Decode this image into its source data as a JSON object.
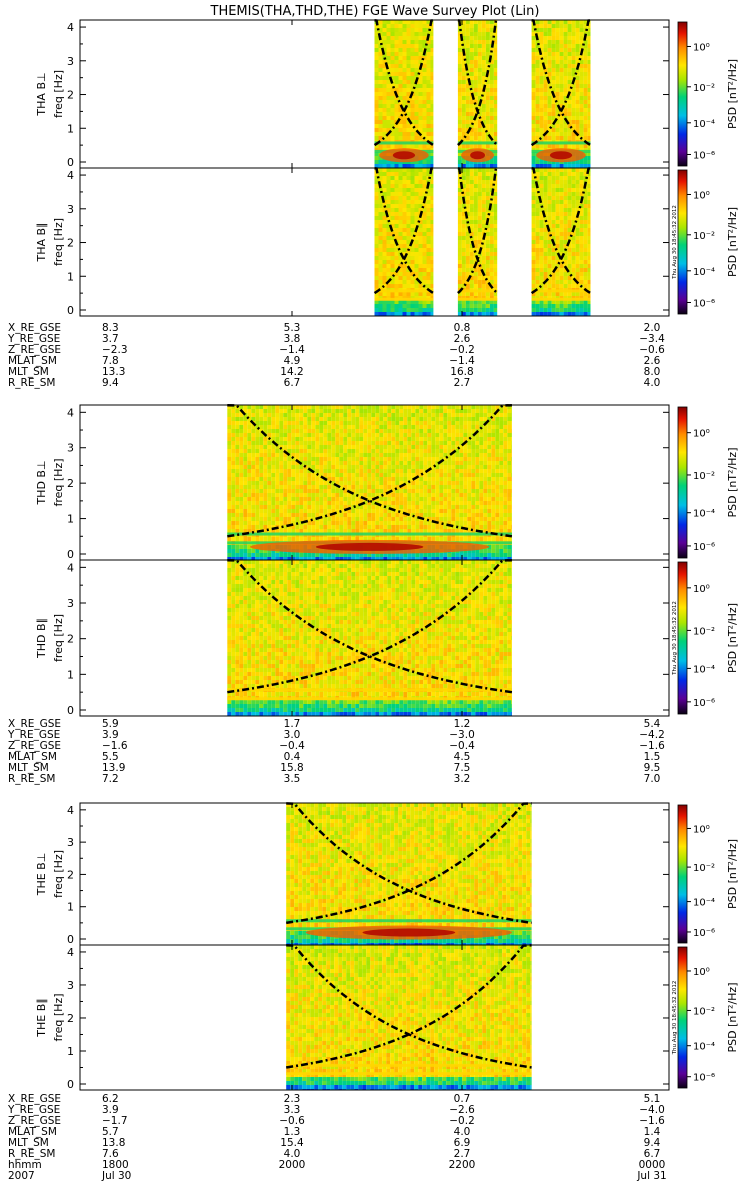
{
  "title": "THEMIS(THA,THD,THE) FGE Wave Survey Plot (Lin)",
  "colorbar": {
    "label": "PSD [nT²/Hz]",
    "ticks": [
      "10⁰",
      "10⁻²",
      "10⁻⁴",
      "10⁻⁶"
    ],
    "stamp": "Thu Aug 30 18:45:32 2012"
  },
  "ephemeris_labels": [
    "X_RE_GSE",
    "Y_RE_GSE",
    "Z_RE_GSE",
    "MLAT_SM",
    "MLT_SM",
    "R_RE_SM"
  ],
  "time_axis": {
    "hhmm_label": "hhmm",
    "year_label": "2007",
    "tick_times": [
      "1800",
      "2000",
      "2200",
      "0000"
    ],
    "tick_dates": [
      "Jul 30",
      "",
      "",
      "Jul 31"
    ]
  },
  "chart_data": [
    {
      "type": "heatmap",
      "probe": "THA",
      "ylabel": "THA B⊥",
      "ylabel2": "freq [Hz]",
      "yticks": [
        "0",
        "1",
        "2",
        "3",
        "4"
      ],
      "ylim": [
        0,
        4
      ],
      "xlim_hours": [
        18,
        24
      ],
      "data_segments_hours": [
        [
          21.0,
          21.6
        ],
        [
          21.85,
          22.25
        ],
        [
          22.6,
          23.2
        ]
      ],
      "colorscale": "log PSD, 1e-6 to 1e1 nT^2/Hz"
    },
    {
      "type": "heatmap",
      "probe": "THA",
      "ylabel": "THA B∥",
      "ylabel2": "freq [Hz]",
      "yticks": [
        "0",
        "1",
        "2",
        "3",
        "4"
      ],
      "ylim": [
        0,
        4
      ],
      "xlim_hours": [
        18,
        24
      ],
      "data_segments_hours": [
        [
          21.0,
          21.6
        ],
        [
          21.85,
          22.25
        ],
        [
          22.6,
          23.2
        ]
      ]
    },
    {
      "type": "heatmap",
      "probe": "THD",
      "ylabel": "THD B⊥",
      "ylabel2": "freq [Hz]",
      "yticks": [
        "0",
        "1",
        "2",
        "3",
        "4"
      ],
      "ylim": [
        0,
        4
      ],
      "xlim_hours": [
        18,
        24
      ],
      "data_segments_hours": [
        [
          19.5,
          22.4
        ]
      ]
    },
    {
      "type": "heatmap",
      "probe": "THD",
      "ylabel": "THD B∥",
      "ylabel2": "freq [Hz]",
      "yticks": [
        "0",
        "1",
        "2",
        "3",
        "4"
      ],
      "ylim": [
        0,
        4
      ],
      "xlim_hours": [
        18,
        24
      ],
      "data_segments_hours": [
        [
          19.5,
          22.4
        ]
      ]
    },
    {
      "type": "heatmap",
      "probe": "THE",
      "ylabel": "THE B⊥",
      "ylabel2": "freq [Hz]",
      "yticks": [
        "0",
        "1",
        "2",
        "3",
        "4"
      ],
      "ylim": [
        0,
        4
      ],
      "xlim_hours": [
        18,
        24
      ],
      "data_segments_hours": [
        [
          20.1,
          22.6
        ]
      ]
    },
    {
      "type": "heatmap",
      "probe": "THE",
      "ylabel": "THE B∥",
      "ylabel2": "freq [Hz]",
      "yticks": [
        "0",
        "1",
        "2",
        "3",
        "4"
      ],
      "ylim": [
        0,
        4
      ],
      "xlim_hours": [
        18,
        24
      ],
      "data_segments_hours": [
        [
          20.1,
          22.6
        ]
      ]
    }
  ],
  "ephemeris": [
    {
      "probe": "THA",
      "columns": [
        [
          "8.3",
          "3.7",
          "−2.3",
          "7.8",
          "13.3",
          "9.4"
        ],
        [
          "5.3",
          "3.8",
          "−1.4",
          "4.9",
          "14.2",
          "6.7"
        ],
        [
          "0.8",
          "2.6",
          "−0.2",
          "−1.4",
          "16.8",
          "2.7"
        ],
        [
          "2.0",
          "−3.4",
          "−0.6",
          "2.6",
          "8.0",
          "4.0"
        ]
      ]
    },
    {
      "probe": "THD",
      "columns": [
        [
          "5.9",
          "3.9",
          "−1.6",
          "5.5",
          "13.9",
          "7.2"
        ],
        [
          "1.7",
          "3.0",
          "−0.4",
          "0.4",
          "15.8",
          "3.5"
        ],
        [
          "1.2",
          "−3.0",
          "−0.4",
          "4.5",
          "7.5",
          "3.2"
        ],
        [
          "5.4",
          "−4.2",
          "−1.6",
          "1.5",
          "9.5",
          "7.0"
        ]
      ]
    },
    {
      "probe": "THE",
      "columns": [
        [
          "6.2",
          "3.9",
          "−1.7",
          "5.7",
          "13.8",
          "7.6"
        ],
        [
          "2.3",
          "3.3",
          "−0.6",
          "1.3",
          "15.4",
          "4.0"
        ],
        [
          "0.7",
          "−2.6",
          "−0.2",
          "4.0",
          "6.9",
          "2.7"
        ],
        [
          "5.1",
          "−4.0",
          "−1.6",
          "1.4",
          "9.4",
          "6.7"
        ]
      ]
    }
  ]
}
